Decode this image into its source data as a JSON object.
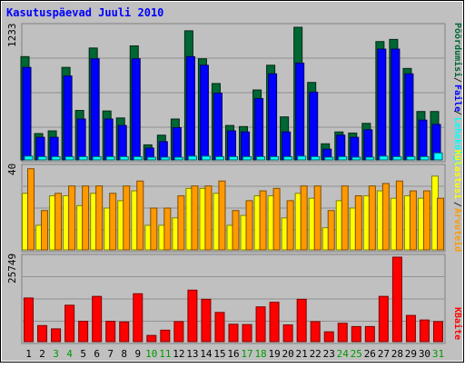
{
  "title": "Kasutuspäevad Juuli 2010",
  "colors": {
    "background": "#c0c0c0",
    "title": "#0000ff",
    "hits": "#006633",
    "files": "#0000ff",
    "pages": "#00ffff",
    "visits": "#ffff00",
    "sites": "#ff9900",
    "kbytes": "#ff0000",
    "weekend_day": "#009900",
    "weekday": "#000000",
    "grid": "#909090"
  },
  "chart_data": [
    {
      "type": "bar",
      "panel": "top",
      "ymax_label": "1233",
      "categories": [
        "1",
        "2",
        "3",
        "4",
        "5",
        "6",
        "7",
        "8",
        "9",
        "10",
        "11",
        "12",
        "13",
        "14",
        "15",
        "16",
        "17",
        "18",
        "19",
        "20",
        "21",
        "22",
        "23",
        "24",
        "25",
        "26",
        "27",
        "28",
        "29",
        "30",
        "31"
      ],
      "weekend_days": [
        3,
        4,
        10,
        11,
        17,
        18,
        24,
        25,
        31
      ],
      "series": [
        {
          "name": "Pöördumisi",
          "color": "#006633",
          "values": [
            960,
            245,
            270,
            860,
            460,
            1040,
            455,
            390,
            1060,
            140,
            230,
            380,
            1200,
            940,
            710,
            320,
            310,
            650,
            880,
            400,
            1233,
            720,
            150,
            260,
            250,
            340,
            1100,
            1120,
            850,
            450,
            450
          ]
        },
        {
          "name": "Faile",
          "color": "#0000ff",
          "values": [
            860,
            210,
            210,
            780,
            380,
            940,
            380,
            320,
            940,
            110,
            170,
            300,
            960,
            880,
            620,
            270,
            260,
            570,
            800,
            260,
            900,
            630,
            100,
            230,
            210,
            280,
            1030,
            1030,
            800,
            370,
            330
          ]
        },
        {
          "name": "Lehekülgi",
          "color": "#00ffff",
          "values": [
            35,
            30,
            30,
            30,
            30,
            30,
            30,
            30,
            30,
            25,
            25,
            25,
            35,
            35,
            30,
            30,
            30,
            30,
            30,
            30,
            35,
            30,
            25,
            30,
            25,
            25,
            35,
            30,
            30,
            30,
            65
          ]
        }
      ]
    },
    {
      "type": "bar",
      "panel": "middle",
      "ymax_label": "40",
      "categories": [
        "1",
        "2",
        "3",
        "4",
        "5",
        "6",
        "7",
        "8",
        "9",
        "10",
        "11",
        "12",
        "13",
        "14",
        "15",
        "16",
        "17",
        "18",
        "19",
        "20",
        "21",
        "22",
        "23",
        "24",
        "25",
        "26",
        "27",
        "28",
        "29",
        "30",
        "31"
      ],
      "series": [
        {
          "name": "Külastusi",
          "color": "#ffff00",
          "values": [
            23,
            10,
            22,
            22,
            18,
            23,
            17,
            20,
            24,
            10,
            10,
            13,
            25,
            25,
            23,
            10,
            14,
            22,
            22,
            13,
            23,
            21,
            9,
            20,
            17,
            22,
            24,
            21,
            22,
            21,
            30
          ]
        },
        {
          "name": "Arvuteid",
          "color": "#ff9900",
          "values": [
            33,
            16,
            23,
            26,
            26,
            26,
            23,
            26,
            28,
            17,
            17,
            22,
            26,
            26,
            28,
            16,
            20,
            24,
            25,
            20,
            26,
            26,
            16,
            26,
            22,
            26,
            27,
            28,
            24,
            24,
            21
          ]
        }
      ]
    },
    {
      "type": "bar",
      "panel": "bottom",
      "ymax_label": "25749",
      "categories": [
        "1",
        "2",
        "3",
        "4",
        "5",
        "6",
        "7",
        "8",
        "9",
        "10",
        "11",
        "12",
        "13",
        "14",
        "15",
        "16",
        "17",
        "18",
        "19",
        "20",
        "21",
        "22",
        "23",
        "24",
        "25",
        "26",
        "27",
        "28",
        "29",
        "30",
        "31"
      ],
      "series": [
        {
          "name": "KBaite",
          "color": "#ff0000",
          "values": [
            13300,
            4900,
            3900,
            11100,
            6200,
            13800,
            6200,
            6000,
            14600,
            1900,
            3500,
            6100,
            15700,
            12900,
            8900,
            5300,
            5200,
            10600,
            12000,
            5100,
            12900,
            6100,
            3000,
            5600,
            4600,
            4600,
            13800,
            25749,
            8000,
            6600,
            6100
          ]
        }
      ]
    }
  ]
}
